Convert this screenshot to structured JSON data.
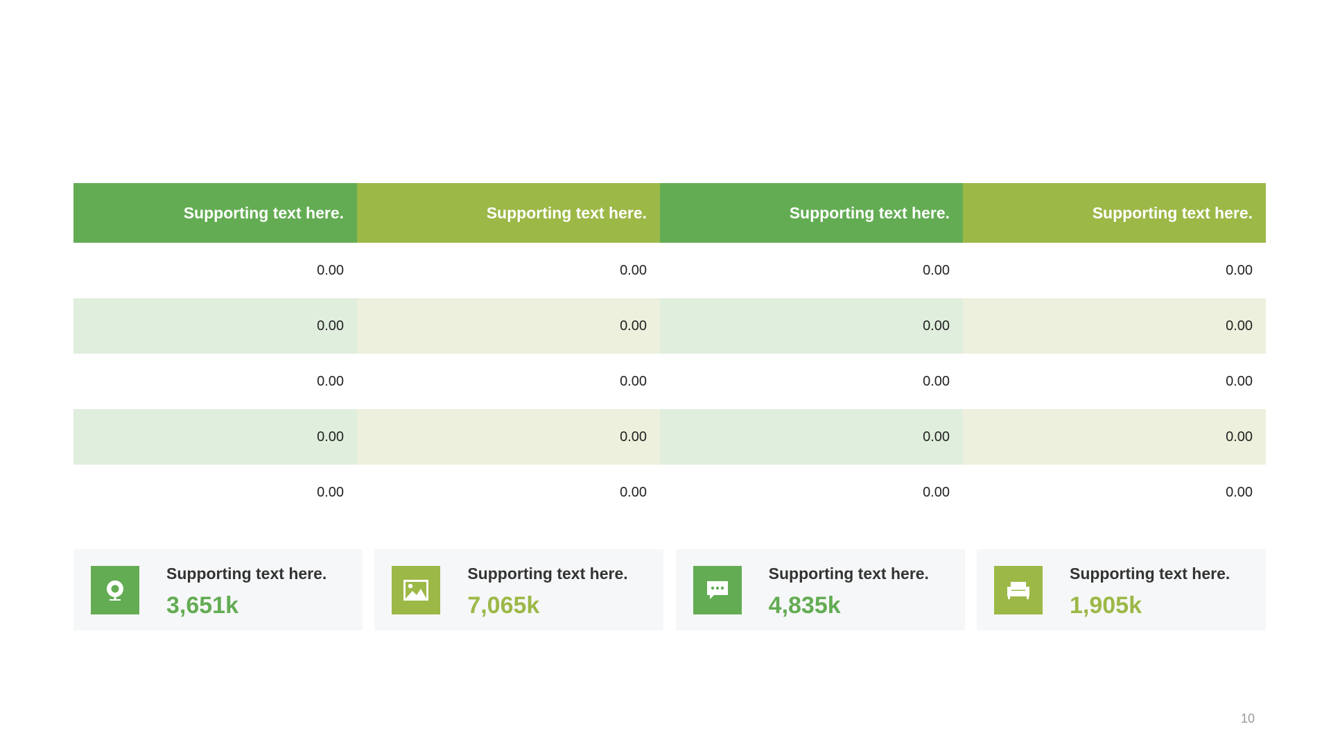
{
  "table": {
    "headers": [
      "Supporting text here.",
      "Supporting text here.",
      "Supporting text here.",
      "Supporting text here."
    ],
    "rows": [
      [
        "0.00",
        "0.00",
        "0.00",
        "0.00"
      ],
      [
        "0.00",
        "0.00",
        "0.00",
        "0.00"
      ],
      [
        "0.00",
        "0.00",
        "0.00",
        "0.00"
      ],
      [
        "0.00",
        "0.00",
        "0.00",
        "0.00"
      ],
      [
        "0.00",
        "0.00",
        "0.00",
        "0.00"
      ]
    ]
  },
  "cards": [
    {
      "icon": "webcam-icon",
      "label": "Supporting text here.",
      "value": "3,651k",
      "color": "#63ac53"
    },
    {
      "icon": "image-icon",
      "label": "Supporting text here.",
      "value": "7,065k",
      "color": "#9cb847"
    },
    {
      "icon": "chat-icon",
      "label": "Supporting text here.",
      "value": "4,835k",
      "color": "#63ac53"
    },
    {
      "icon": "sofa-icon",
      "label": "Supporting text here.",
      "value": "1,905k",
      "color": "#9cb847"
    }
  ],
  "colors": {
    "green": "#63ac53",
    "olive": "#9cb847",
    "green_light": "#e0eedd",
    "olive_light": "#edf0dc"
  },
  "page_number": "10"
}
